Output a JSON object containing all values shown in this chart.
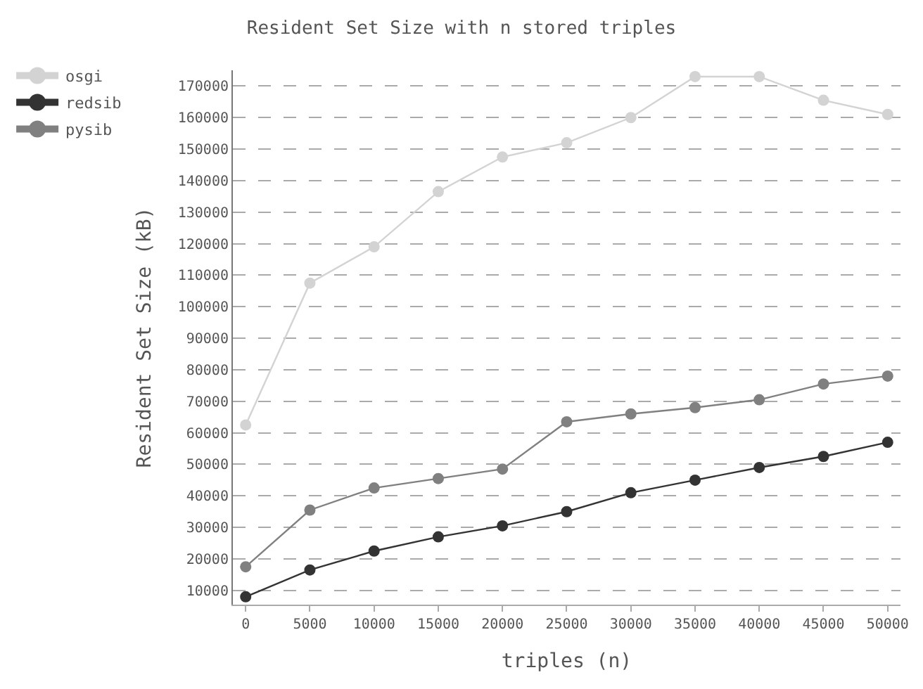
{
  "chart_data": {
    "type": "line",
    "title": "Resident Set Size with n stored triples",
    "xlabel": "triples (n)",
    "ylabel": "Resident Set Size (kB)",
    "x": [
      0,
      5000,
      10000,
      15000,
      20000,
      25000,
      30000,
      35000,
      40000,
      45000,
      50000
    ],
    "series": [
      {
        "name": "osgi",
        "color": "#d3d3d3",
        "values": [
          62500,
          107500,
          119000,
          136500,
          147500,
          152000,
          160000,
          173000,
          173000,
          165500,
          161000
        ]
      },
      {
        "name": "redsib",
        "color": "#333333",
        "values": [
          8000,
          16500,
          22500,
          27000,
          30500,
          35000,
          41000,
          45000,
          49000,
          52500,
          57000
        ]
      },
      {
        "name": "pysib",
        "color": "#808080",
        "values": [
          17500,
          35500,
          42500,
          45500,
          48500,
          63500,
          66000,
          68000,
          70500,
          75500,
          78000
        ]
      }
    ],
    "xlim": [
      -1000,
      51000
    ],
    "xticks": [
      0,
      5000,
      10000,
      15000,
      20000,
      25000,
      30000,
      35000,
      40000,
      45000,
      50000
    ],
    "ylim": [
      5500,
      175000
    ],
    "yticks": [
      10000,
      20000,
      30000,
      40000,
      50000,
      60000,
      70000,
      80000,
      90000,
      100000,
      110000,
      120000,
      130000,
      140000,
      150000,
      160000,
      170000
    ],
    "grid": "y",
    "legend": "top left",
    "marker": "circle",
    "line_style": "solid"
  }
}
